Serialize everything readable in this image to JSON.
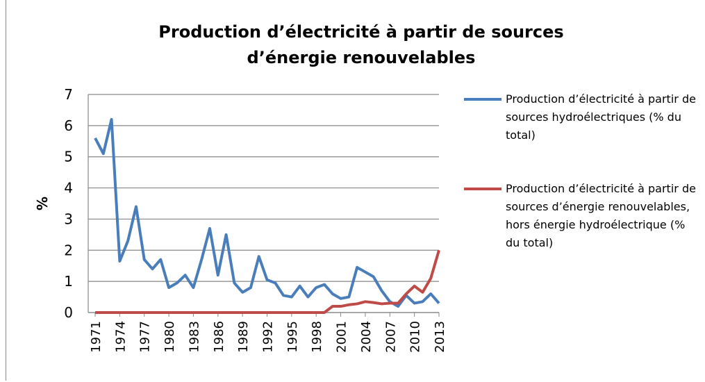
{
  "chart_data": {
    "type": "line",
    "title": "Production d’électricité à partir de sources d’énergie renouvelables",
    "ylabel": "%",
    "x": [
      1971,
      1972,
      1973,
      1974,
      1975,
      1976,
      1977,
      1978,
      1979,
      1980,
      1981,
      1982,
      1983,
      1984,
      1985,
      1986,
      1987,
      1988,
      1989,
      1990,
      1991,
      1992,
      1993,
      1994,
      1995,
      1996,
      1997,
      1998,
      1999,
      2000,
      2001,
      2002,
      2003,
      2004,
      2005,
      2006,
      2007,
      2008,
      2009,
      2010,
      2011,
      2012,
      2013
    ],
    "series": [
      {
        "name": "Production d’électricité à partir de sources hydroélectriques (% du total)",
        "color": "#4a7ebb",
        "values": [
          5.6,
          5.1,
          6.2,
          1.65,
          2.3,
          3.4,
          1.7,
          1.4,
          1.7,
          0.8,
          0.95,
          1.2,
          0.8,
          1.7,
          2.7,
          1.2,
          2.5,
          0.95,
          0.65,
          0.8,
          1.8,
          1.05,
          0.95,
          0.55,
          0.5,
          0.85,
          0.5,
          0.8,
          0.9,
          0.6,
          0.45,
          0.5,
          1.45,
          1.3,
          1.15,
          0.7,
          0.35,
          0.2,
          0.55,
          0.3,
          0.35,
          0.6,
          0.3
        ]
      },
      {
        "name": "Production d’électricité à partir de sources d’énergie renouvelables, hors énergie hydroélectrique (% du total)",
        "color": "#be4b48",
        "values": [
          0,
          0,
          0,
          0,
          0,
          0,
          0,
          0,
          0,
          0,
          0,
          0,
          0,
          0,
          0,
          0,
          0,
          0,
          0,
          0,
          0,
          0,
          0,
          0,
          0,
          0,
          0,
          0,
          0,
          0.2,
          0.2,
          0.25,
          0.28,
          0.35,
          0.32,
          0.28,
          0.3,
          0.3,
          0.6,
          0.85,
          0.65,
          1.1,
          2.0
        ]
      }
    ],
    "xlim": [
      1971,
      2013
    ],
    "xticks": [
      1971,
      1974,
      1977,
      1980,
      1983,
      1986,
      1989,
      1992,
      1995,
      1998,
      2001,
      2004,
      2007,
      2010,
      2013
    ],
    "ylim": [
      0,
      7
    ],
    "yticks": [
      0,
      1,
      2,
      3,
      4,
      5,
      6,
      7
    ],
    "grid": true,
    "legend": "right"
  }
}
